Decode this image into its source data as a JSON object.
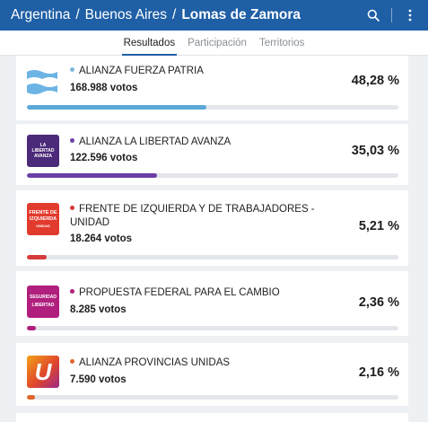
{
  "breadcrumb": {
    "items": [
      "Argentina",
      "Buenos Aires",
      "Lomas de Zamora"
    ],
    "separator": "/"
  },
  "toolbar": {
    "search_icon": "search-icon",
    "menu_icon": "kebab-menu-icon"
  },
  "tabs": [
    {
      "label": "Resultados",
      "active": true
    },
    {
      "label": "Participación",
      "active": false
    },
    {
      "label": "Territorios",
      "active": false
    }
  ],
  "parties": [
    {
      "name": "ALIANZA FUERZA PATRIA",
      "votes": "168.988 votos",
      "percent": "48,28 %",
      "value": 48.28,
      "color": "#5aa9d9",
      "dot_color": "#7fb8dc",
      "logo": "argentine-flag-logo"
    },
    {
      "name": "ALIANZA LA LIBERTAD AVANZA",
      "votes": "122.596 votos",
      "percent": "35,03 %",
      "value": 35.03,
      "color": "#6b3fa6",
      "dot_color": "#6b3fa6",
      "logo": "libertad-avanza-logo",
      "logo_text": [
        "LA",
        "LIBERTAD",
        "AVANZA"
      ]
    },
    {
      "name": "FRENTE DE IZQUIERDA Y DE TRABAJADORES - UNIDAD",
      "votes": "18.264 votos",
      "percent": "5,21 %",
      "value": 5.21,
      "color": "#d63a3a",
      "dot_color": "#d63a3a",
      "logo": "frente-izquierda-logo",
      "logo_text": [
        "FRENTE DE",
        "IZQUIERDA",
        "UNIDAD"
      ]
    },
    {
      "name": "PROPUESTA FEDERAL PARA EL CAMBIO",
      "votes": "8.285 votos",
      "percent": "2,36 %",
      "value": 2.36,
      "color": "#b01f7e",
      "dot_color": "#b01f7e",
      "logo": "seguridad-libertad-logo",
      "logo_text": [
        "SEGURIDAD",
        "LIBERTAD"
      ]
    },
    {
      "name": "ALIANZA PROVINCIAS UNIDAS",
      "votes": "7.590 votos",
      "percent": "2,16 %",
      "value": 2.16,
      "color": "#e0662a",
      "dot_color": "#e0662a",
      "logo": "provincias-unidas-logo",
      "logo_text": [
        "U"
      ]
    }
  ]
}
